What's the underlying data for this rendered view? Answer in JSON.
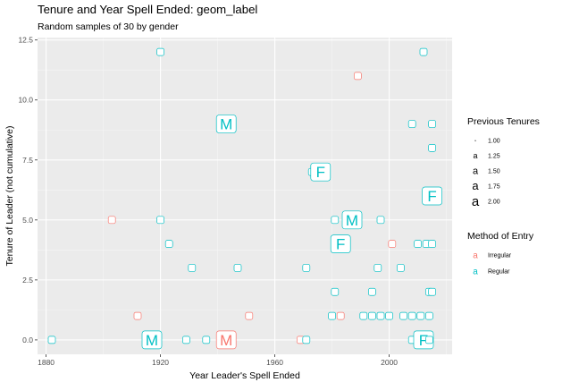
{
  "chart_data": {
    "type": "scatter",
    "title": "Tenure and Year Spell Ended: geom_label",
    "subtitle": "Random samples of 30 by gender",
    "xlabel": "Year Leader's Spell Ended",
    "ylabel": "Tenure of Leader (not cumulative)",
    "xlim": [
      1877,
      2022
    ],
    "ylim": [
      -0.6,
      12.6
    ],
    "x_ticks": [
      1880,
      1920,
      1960,
      2000
    ],
    "y_ticks": [
      0.0,
      2.5,
      5.0,
      7.5,
      10.0,
      12.5
    ],
    "x_tick_labels": [
      "1880",
      "1920",
      "1960",
      "2000"
    ],
    "y_tick_labels": [
      "0.0",
      "2.5",
      "5.0",
      "7.5",
      "10.0",
      "12.5"
    ],
    "grid": true,
    "legend_placement": "right",
    "colors": {
      "Irregular": "#F8766D",
      "Regular": "#00BFC4"
    },
    "legends": {
      "size": {
        "title": "Previous Tenures",
        "entries": [
          {
            "glyph": "a",
            "label": "1.00",
            "value": 1.0
          },
          {
            "glyph": "a",
            "label": "1.25",
            "value": 1.25
          },
          {
            "glyph": "a",
            "label": "1.50",
            "value": 1.5
          },
          {
            "glyph": "a",
            "label": "1.75",
            "value": 1.75
          },
          {
            "glyph": "a",
            "label": "2.00",
            "value": 2.0
          }
        ]
      },
      "color": {
        "title": "Method of Entry",
        "entries": [
          {
            "glyph": "a",
            "label": "Irregular",
            "color": "#F8766D"
          },
          {
            "glyph": "a",
            "label": "Regular",
            "color": "#00BFC4"
          }
        ]
      }
    },
    "points": [
      {
        "x": 1882,
        "y": 0,
        "label": "",
        "method": "Regular",
        "prev": 1
      },
      {
        "x": 1903,
        "y": 5,
        "label": "",
        "method": "Irregular",
        "prev": 1
      },
      {
        "x": 1912,
        "y": 1,
        "label": "",
        "method": "Irregular",
        "prev": 1
      },
      {
        "x": 1917,
        "y": 0,
        "label": "M",
        "method": "Regular",
        "prev": 2
      },
      {
        "x": 1920,
        "y": 12,
        "label": "",
        "method": "Regular",
        "prev": 1
      },
      {
        "x": 1920,
        "y": 5,
        "label": "",
        "method": "Regular",
        "prev": 1
      },
      {
        "x": 1923,
        "y": 4,
        "label": "",
        "method": "Regular",
        "prev": 1
      },
      {
        "x": 1929,
        "y": 0,
        "label": "",
        "method": "Regular",
        "prev": 1
      },
      {
        "x": 1931,
        "y": 3,
        "label": "",
        "method": "Regular",
        "prev": 1
      },
      {
        "x": 1936,
        "y": 0,
        "label": "",
        "method": "Regular",
        "prev": 1
      },
      {
        "x": 1943,
        "y": 9,
        "label": "M",
        "method": "Regular",
        "prev": 2
      },
      {
        "x": 1943,
        "y": 0,
        "label": "M",
        "method": "Irregular",
        "prev": 2
      },
      {
        "x": 1947,
        "y": 3,
        "label": "",
        "method": "Regular",
        "prev": 1
      },
      {
        "x": 1951,
        "y": 1,
        "label": "",
        "method": "Irregular",
        "prev": 1
      },
      {
        "x": 1969,
        "y": 0,
        "label": "",
        "method": "Irregular",
        "prev": 1
      },
      {
        "x": 1971,
        "y": 0,
        "label": "",
        "method": "Regular",
        "prev": 1
      },
      {
        "x": 1971,
        "y": 3,
        "label": "",
        "method": "Regular",
        "prev": 1
      },
      {
        "x": 1973,
        "y": 7,
        "label": "",
        "method": "Regular",
        "prev": 1
      },
      {
        "x": 1976,
        "y": 7,
        "label": "F",
        "method": "Regular",
        "prev": 2
      },
      {
        "x": 1980,
        "y": 1,
        "label": "",
        "method": "Regular",
        "prev": 1
      },
      {
        "x": 1981,
        "y": 2,
        "label": "",
        "method": "Regular",
        "prev": 1
      },
      {
        "x": 1981,
        "y": 5,
        "label": "",
        "method": "Regular",
        "prev": 1
      },
      {
        "x": 1983,
        "y": 1,
        "label": "",
        "method": "Irregular",
        "prev": 1
      },
      {
        "x": 1983,
        "y": 4,
        "label": "F",
        "method": "Regular",
        "prev": 2
      },
      {
        "x": 1987,
        "y": 5,
        "label": "M",
        "method": "Regular",
        "prev": 2
      },
      {
        "x": 1989,
        "y": 11,
        "label": "",
        "method": "Irregular",
        "prev": 1
      },
      {
        "x": 1991,
        "y": 1,
        "label": "",
        "method": "Regular",
        "prev": 1
      },
      {
        "x": 1994,
        "y": 1,
        "label": "",
        "method": "Regular",
        "prev": 1
      },
      {
        "x": 1994,
        "y": 2,
        "label": "",
        "method": "Regular",
        "prev": 1
      },
      {
        "x": 1996,
        "y": 3,
        "label": "",
        "method": "Regular",
        "prev": 1
      },
      {
        "x": 1997,
        "y": 5,
        "label": "",
        "method": "Regular",
        "prev": 1
      },
      {
        "x": 1997,
        "y": 1,
        "label": "",
        "method": "Regular",
        "prev": 1
      },
      {
        "x": 2000,
        "y": 1,
        "label": "",
        "method": "Regular",
        "prev": 1
      },
      {
        "x": 2001,
        "y": 4,
        "label": "",
        "method": "Irregular",
        "prev": 1
      },
      {
        "x": 2004,
        "y": 3,
        "label": "",
        "method": "Regular",
        "prev": 1
      },
      {
        "x": 2005,
        "y": 1,
        "label": "",
        "method": "Regular",
        "prev": 1
      },
      {
        "x": 2008,
        "y": 9,
        "label": "",
        "method": "Regular",
        "prev": 1
      },
      {
        "x": 2008,
        "y": 1,
        "label": "",
        "method": "Regular",
        "prev": 1
      },
      {
        "x": 2008,
        "y": 0,
        "label": "",
        "method": "Regular",
        "prev": 1
      },
      {
        "x": 2010,
        "y": 4,
        "label": "",
        "method": "Regular",
        "prev": 1
      },
      {
        "x": 2011,
        "y": 0,
        "label": "",
        "method": "Regular",
        "prev": 1
      },
      {
        "x": 2011,
        "y": 1,
        "label": "",
        "method": "Regular",
        "prev": 1
      },
      {
        "x": 2012,
        "y": 0,
        "label": "F",
        "method": "Regular",
        "prev": 2
      },
      {
        "x": 2012,
        "y": 12,
        "label": "",
        "method": "Regular",
        "prev": 1
      },
      {
        "x": 2013,
        "y": 4,
        "label": "",
        "method": "Regular",
        "prev": 1
      },
      {
        "x": 2014,
        "y": 0,
        "label": "",
        "method": "Regular",
        "prev": 1
      },
      {
        "x": 2014,
        "y": 1,
        "label": "",
        "method": "Regular",
        "prev": 1
      },
      {
        "x": 2014,
        "y": 2,
        "label": "",
        "method": "Regular",
        "prev": 1
      },
      {
        "x": 2015,
        "y": 9,
        "label": "",
        "method": "Regular",
        "prev": 1
      },
      {
        "x": 2015,
        "y": 8,
        "label": "",
        "method": "Regular",
        "prev": 1
      },
      {
        "x": 2015,
        "y": 2,
        "label": "",
        "method": "Regular",
        "prev": 1
      },
      {
        "x": 2015,
        "y": 4,
        "label": "",
        "method": "Regular",
        "prev": 1
      },
      {
        "x": 2015,
        "y": 6,
        "label": "F",
        "method": "Regular",
        "prev": 2
      }
    ]
  }
}
